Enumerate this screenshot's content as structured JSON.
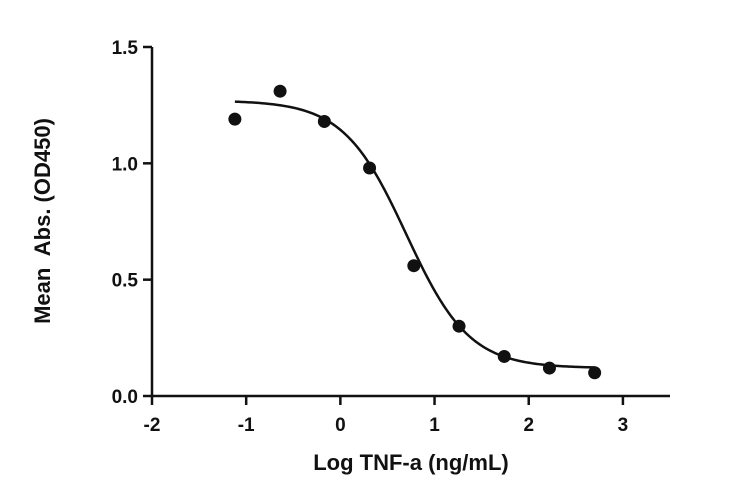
{
  "chart_data": {
    "type": "scatter",
    "title": "",
    "xlabel": "Log TNF-a (ng/mL)",
    "ylabel": "Mean  Abs. (OD450)",
    "xlim": [
      -2,
      3.5
    ],
    "ylim": [
      0,
      1.5
    ],
    "x_ticks": [
      -2,
      -1,
      0,
      1,
      2,
      3
    ],
    "x_tick_labels": [
      "-2",
      "-1",
      "0",
      "1",
      "2",
      "3"
    ],
    "y_ticks": [
      0,
      0.5,
      1.0,
      1.5
    ],
    "y_tick_labels": [
      "0.0",
      "0.5",
      "1.0",
      "1.5"
    ],
    "grid": false,
    "legend": "none",
    "color": "#111111",
    "series": [
      {
        "points": [
          {
            "x": -1.12,
            "y": 1.19
          },
          {
            "x": -0.64,
            "y": 1.31
          },
          {
            "x": -0.17,
            "y": 1.18
          },
          {
            "x": 0.31,
            "y": 0.98
          },
          {
            "x": 0.78,
            "y": 0.56
          },
          {
            "x": 1.26,
            "y": 0.3
          },
          {
            "x": 1.74,
            "y": 0.17
          },
          {
            "x": 2.22,
            "y": 0.12
          },
          {
            "x": 2.7,
            "y": 0.1
          }
        ],
        "fit": {
          "model": "4PL",
          "bottom": 0.12,
          "top": 1.27,
          "log_ec50": 0.7,
          "hill_slope": -1.3,
          "x_range": [
            -1.12,
            2.7
          ]
        }
      }
    ]
  }
}
